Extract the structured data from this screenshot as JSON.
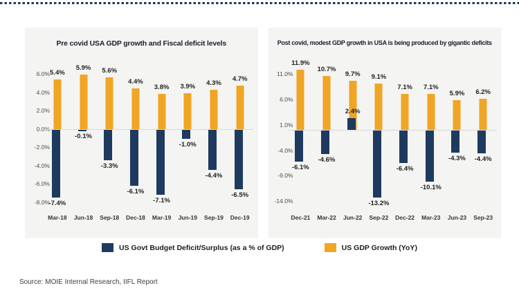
{
  "page": {
    "source_text": "Source: MOIE Internal Research, IIFL Report"
  },
  "colors": {
    "deficit_navy": "#1e3a5f",
    "growth_gold": "#f0a524",
    "panel_bg": "#f4f4f2",
    "top_line": "#1e3a5f"
  },
  "legend": {
    "items": [
      {
        "label": "US Govt Budget Deficit/Surplus (as a % of GDP)",
        "color": "#1e3a5f"
      },
      {
        "label": "US GDP Growth (YoY)",
        "color": "#f0a524"
      }
    ]
  },
  "chart_data": [
    {
      "type": "bar",
      "title": "Pre covid USA GDP growth and Fiscal deficit levels",
      "categories": [
        "Mar-18",
        "Jun-18",
        "Sep-18",
        "Dec-18",
        "Mar-19",
        "Jun-19",
        "Sep-19",
        "Dec-19"
      ],
      "series": [
        {
          "name": "US Govt Budget Deficit/Surplus (as a % of GDP)",
          "color": "#1e3a5f",
          "values": [
            -7.4,
            -0.1,
            -3.3,
            -6.1,
            -7.1,
            -1.0,
            -4.4,
            -6.5
          ]
        },
        {
          "name": "US GDP Growth (YoY)",
          "color": "#f0a524",
          "values": [
            5.4,
            5.9,
            5.6,
            4.4,
            3.8,
            3.9,
            4.3,
            4.7
          ]
        }
      ],
      "data_labels": {
        "deficit": [
          "-7.4%",
          "-0.1%",
          "-3.3%",
          "-6.1%",
          "-7.1%",
          "-1.0%",
          "-4.4%",
          "-6.5%"
        ],
        "growth": [
          "5.4%",
          "5.9%",
          "5.6%",
          "4.4%",
          "3.8%",
          "3.9%",
          "4.3%",
          "4.7%"
        ]
      },
      "yticks": [
        6,
        4,
        2,
        0,
        -2,
        -4,
        -6,
        -8
      ],
      "ytick_labels": [
        "6.0%",
        "4.0%",
        "2.0%",
        "0.0%",
        "-2.0%",
        "-4.0%",
        "-6.0%",
        "-8.0%"
      ],
      "ylim": [
        -8.9,
        6.9
      ],
      "xlabel": "",
      "ylabel": "",
      "grid": false,
      "legend_position": "bottom-shared"
    },
    {
      "type": "bar",
      "title": "Post covid, modest GDP growth in USA is being produced by gigantic deficits",
      "categories": [
        "Dec-21",
        "Mar-22",
        "Jun-22",
        "Sep-22",
        "Dec-22",
        "Mar-23",
        "Jun-23",
        "Sep-23"
      ],
      "series": [
        {
          "name": "US Govt Budget Deficit/Surplus (as a % of GDP)",
          "color": "#1e3a5f",
          "values": [
            -6.1,
            -4.6,
            2.4,
            -13.2,
            -6.4,
            -10.1,
            -4.3,
            -4.4
          ]
        },
        {
          "name": "US GDP Growth (YoY)",
          "color": "#f0a524",
          "values": [
            11.9,
            10.7,
            9.7,
            9.1,
            7.1,
            7.1,
            5.9,
            6.2
          ]
        }
      ],
      "data_labels": {
        "deficit": [
          "-6.1%",
          "-4.6%",
          "2.4%",
          "-13.2%",
          "-6.4%",
          "-10.1%",
          "-4.3%",
          "-4.4%"
        ],
        "growth": [
          "11.9%",
          "10.7%",
          "9.7%",
          "9.1%",
          "7.1%",
          "7.1%",
          "5.9%",
          "6.2%"
        ]
      },
      "yticks": [
        11,
        6,
        1,
        -4,
        -9,
        -14
      ],
      "ytick_labels": [
        "11.0%",
        "6.0%",
        "1.0%",
        "-4.0%",
        "-9.0%",
        "-14.0%"
      ],
      "ylim": [
        -15.9,
        12.7
      ],
      "xlabel": "",
      "ylabel": "",
      "grid": false,
      "legend_position": "bottom-shared"
    }
  ]
}
